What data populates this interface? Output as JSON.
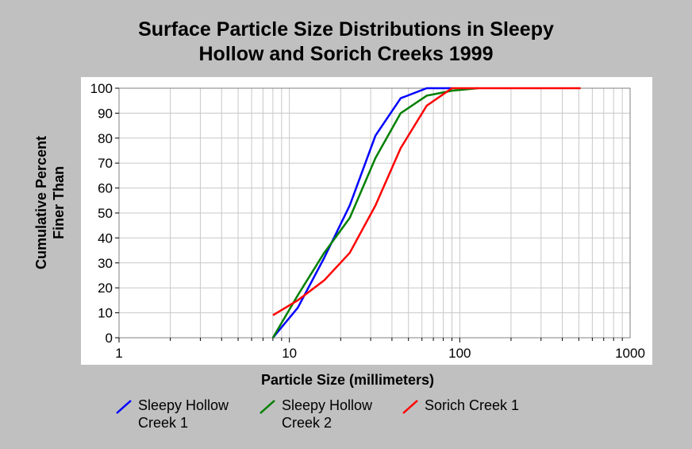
{
  "chart_data": {
    "type": "line",
    "title_lines": [
      "Surface Particle Size Distributions in Sleepy",
      "Hollow and Sorich Creeks 1999"
    ],
    "xlabel": "Particle Size (millimeters)",
    "ylabel_lines": [
      "Cumulative Percent",
      "Finer Than"
    ],
    "x_scale": "log",
    "xlim": [
      1,
      1000
    ],
    "ylim": [
      0,
      100
    ],
    "x_ticks": [
      1,
      10,
      100,
      1000
    ],
    "x_tick_labels": [
      "1",
      "10",
      "100",
      "1000"
    ],
    "y_ticks": [
      0,
      10,
      20,
      30,
      40,
      50,
      60,
      70,
      80,
      90,
      100
    ],
    "y_tick_labels": [
      "0",
      "10",
      "20",
      "30",
      "40",
      "50",
      "60",
      "70",
      "80",
      "90",
      "100"
    ],
    "grid": true,
    "legend_position": "bottom",
    "series": [
      {
        "name": "Sleepy Hollow Creek 1",
        "label_lines": [
          "Sleepy Hollow",
          "Creek 1"
        ],
        "color": "#0000ff",
        "x": [
          8,
          11.2,
          16,
          22.6,
          32,
          45,
          64,
          90
        ],
        "y": [
          0,
          12,
          32,
          53,
          81,
          96,
          100,
          100
        ]
      },
      {
        "name": "Sleepy Hollow Creek 2",
        "label_lines": [
          "Sleepy Hollow",
          "Creek 2"
        ],
        "color": "#008000",
        "x": [
          8,
          11.2,
          16,
          22.6,
          32,
          45,
          64,
          90,
          128
        ],
        "y": [
          0,
          17,
          34,
          48,
          72,
          90,
          97,
          99,
          100
        ]
      },
      {
        "name": "Sorich Creek 1",
        "label_lines": [
          "Sorich Creek 1"
        ],
        "color": "#ff0000",
        "x": [
          8,
          11.2,
          16,
          22.6,
          32,
          45,
          64,
          90,
          128,
          512
        ],
        "y": [
          9,
          15,
          23,
          34,
          53,
          76,
          93,
          100,
          100,
          100
        ]
      }
    ]
  }
}
